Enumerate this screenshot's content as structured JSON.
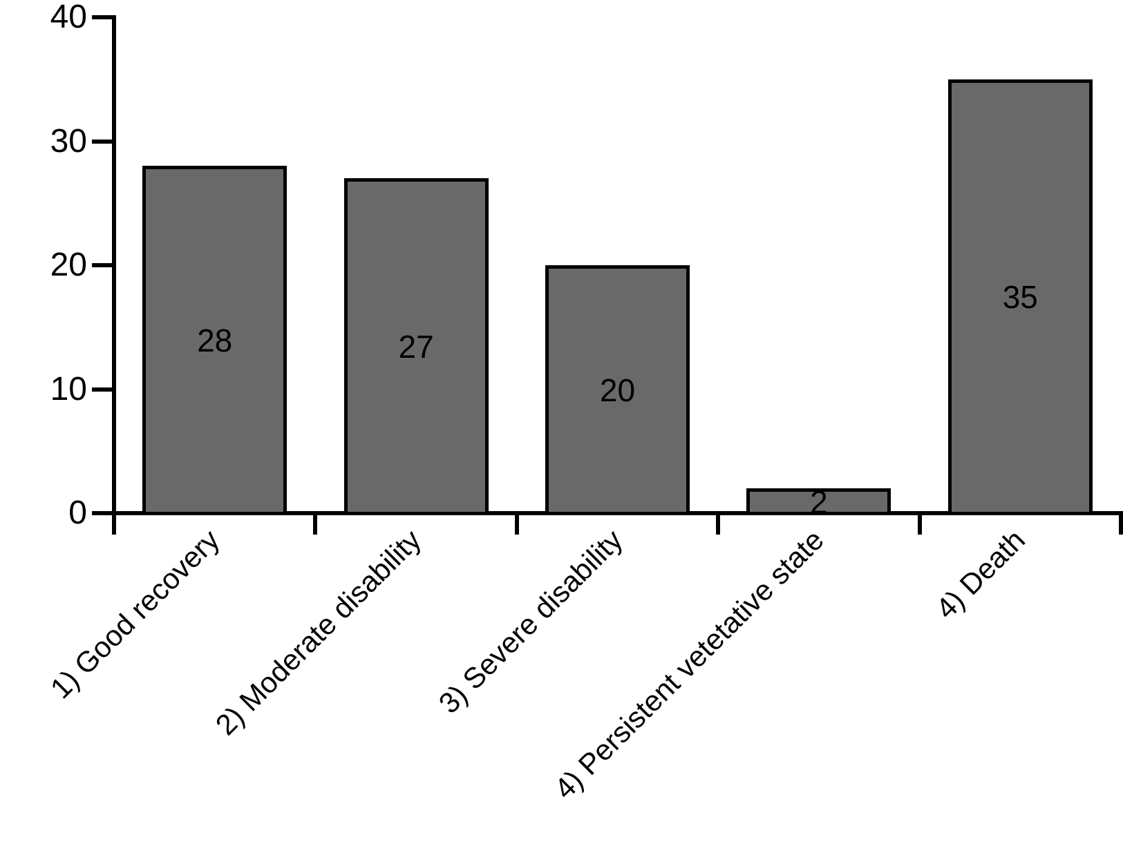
{
  "chart_data": {
    "type": "bar",
    "categories": [
      "1) Good recovery",
      "2) Moderate disability",
      "3) Severe disability",
      "4) Persistent vetetative state",
      "4) Death"
    ],
    "values": [
      28,
      27,
      20,
      2,
      35
    ],
    "bar_value_labels": [
      "28",
      "27",
      "20",
      "2",
      "35"
    ],
    "title": "",
    "xlabel": "",
    "ylabel": "",
    "ylim": [
      0,
      40
    ],
    "yticks": [
      "0",
      "10",
      "20",
      "30",
      "40"
    ],
    "ytick_values": [
      0,
      10,
      20,
      30,
      40
    ],
    "grid": false,
    "legend_position": "none",
    "x_tick_style": "boundary-ticks-between-categories",
    "x_label_rotation_deg": 45,
    "colors": {
      "bar_fill": "#696969",
      "bar_border": "#000000",
      "axis": "#000000",
      "text": "#000000",
      "background": "#ffffff"
    }
  }
}
